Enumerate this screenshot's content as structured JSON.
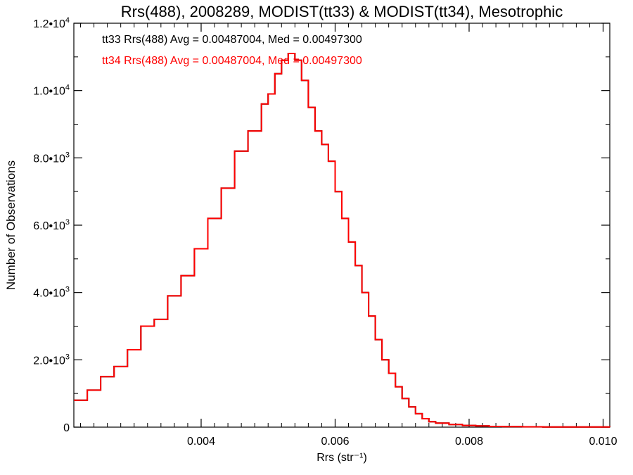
{
  "chart_data": {
    "type": "line",
    "title": "Rrs(488), 2008289, MODIST(tt33) & MODIST(tt34), Mesotrophic",
    "xlabel": "Rrs (str⁻¹)",
    "ylabel": "Number of Observations",
    "xlim": [
      0.0021,
      0.0101
    ],
    "ylim": [
      0,
      12000
    ],
    "x_tick_labels": [
      "0.004",
      "0.006",
      "0.008",
      "0.010"
    ],
    "x_tick_values": [
      0.004,
      0.006,
      0.008,
      0.01
    ],
    "y_tick_values": [
      0,
      2000,
      4000,
      6000,
      8000,
      10000,
      12000
    ],
    "y_tick_labels": [
      {
        "mant": "0",
        "exp": ""
      },
      {
        "mant": "2.0•10",
        "exp": "3"
      },
      {
        "mant": "4.0•10",
        "exp": "3"
      },
      {
        "mant": "6.0•10",
        "exp": "3"
      },
      {
        "mant": "8.0•10",
        "exp": "3"
      },
      {
        "mant": "1.0•10",
        "exp": "4"
      },
      {
        "mant": "1.2•10",
        "exp": "4"
      }
    ],
    "grid": false,
    "annotations": [
      {
        "text": "tt33 Rrs(488) Avg = 0.00487004, Med = 0.00497300",
        "color": "#000000"
      },
      {
        "text": "tt34 Rrs(488) Avg = 0.00487004, Med = 0.00497300",
        "color": "#ff0000"
      }
    ],
    "series": [
      {
        "color": "#ff0000",
        "x": [
          0.0021,
          0.0023,
          0.0025,
          0.0027,
          0.0029,
          0.0031,
          0.0033,
          0.0035,
          0.0037,
          0.0039,
          0.0041,
          0.0043,
          0.0045,
          0.0047,
          0.0049,
          0.005,
          0.0051,
          0.0052,
          0.0053,
          0.0054,
          0.0055,
          0.0056,
          0.0057,
          0.0058,
          0.0059,
          0.006,
          0.0061,
          0.0062,
          0.0063,
          0.0064,
          0.0065,
          0.0066,
          0.0067,
          0.0068,
          0.0069,
          0.007,
          0.0071,
          0.0072,
          0.0073,
          0.0074,
          0.0075,
          0.0077,
          0.0079,
          0.0081,
          0.0083,
          0.0085,
          0.0088,
          0.0091,
          0.0095,
          0.0101
        ],
        "values": [
          800,
          1100,
          1500,
          1800,
          2300,
          3000,
          3200,
          3900,
          4500,
          5300,
          6200,
          7100,
          8200,
          8800,
          9600,
          9900,
          10500,
          10900,
          11100,
          10900,
          10300,
          9500,
          8800,
          8400,
          7900,
          7000,
          6200,
          5500,
          4800,
          4000,
          3300,
          2600,
          2000,
          1600,
          1200,
          850,
          600,
          400,
          250,
          160,
          120,
          80,
          50,
          35,
          20,
          15,
          10,
          6,
          4,
          2
        ]
      },
      {
        "color": "#000000",
        "x": [
          0.0021,
          0.0023,
          0.0025,
          0.0027,
          0.0029,
          0.0031,
          0.0033,
          0.0035,
          0.0037,
          0.0039,
          0.0041,
          0.0043,
          0.0045,
          0.0047,
          0.0049,
          0.005,
          0.0051,
          0.0052,
          0.0053,
          0.0054,
          0.0055,
          0.0056,
          0.0057,
          0.0058,
          0.0059,
          0.006,
          0.0061,
          0.0062,
          0.0063,
          0.0064,
          0.0065,
          0.0066,
          0.0067,
          0.0068,
          0.0069,
          0.007,
          0.0071,
          0.0072,
          0.0073,
          0.0074,
          0.0075,
          0.0077,
          0.0079,
          0.0081,
          0.0083,
          0.0085,
          0.0088,
          0.0091,
          0.0095,
          0.0101
        ],
        "values": [
          800,
          1100,
          1500,
          1800,
          2300,
          3000,
          3200,
          3900,
          4500,
          5300,
          6200,
          7100,
          8200,
          8800,
          9600,
          9900,
          10500,
          10900,
          11100,
          10900,
          10300,
          9500,
          8800,
          8400,
          7900,
          7000,
          6200,
          5500,
          4800,
          4000,
          3300,
          2600,
          2000,
          1600,
          1200,
          850,
          600,
          400,
          250,
          160,
          120,
          80,
          50,
          35,
          20,
          15,
          10,
          6,
          4,
          2
        ]
      }
    ]
  }
}
